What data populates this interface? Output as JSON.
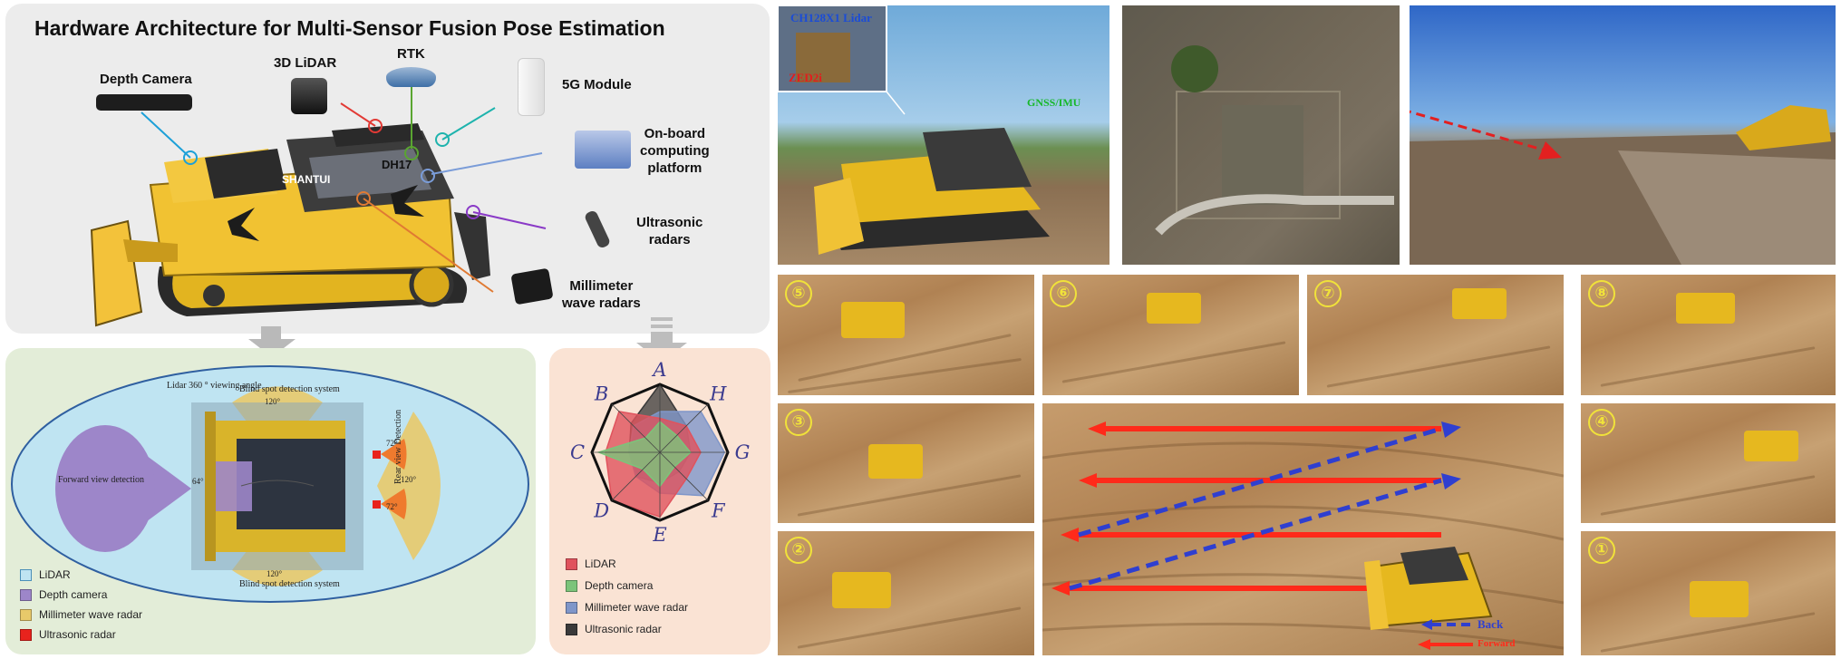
{
  "top": {
    "title": "Hardware Architecture for Multi-Sensor Fusion Pose Estimation",
    "sensors": {
      "depth_camera": "Depth Camera",
      "lidar": "3D LiDAR",
      "rtk": "RTK",
      "module_5g": "5G Module",
      "computing_1": "On-board",
      "computing_2": "computing",
      "computing_3": "platform",
      "ultrasonic_1": "Ultrasonic",
      "ultrasonic_2": "radars",
      "mmwave_1": "Millimeter",
      "mmwave_2": "wave radars"
    },
    "machine": {
      "brand": "SHANTUI",
      "model": "DH17"
    }
  },
  "coverage": {
    "lidar_view": "Lidar 360 ° viewing angle",
    "blind_top": "Blind spot detection system",
    "blind_bottom": "Blind spot detection system",
    "forward": "Forward view detection",
    "rear": "Rear view Detection",
    "angle_64": "64°",
    "angle_120_top": "120°",
    "angle_120_bottom": "120°",
    "angle_120_rear": "120°",
    "angle_72_top": "72°",
    "angle_72_bottom": "72°",
    "legend": [
      "LiDAR",
      "Depth camera",
      "Millimeter wave radar",
      "Ultrasonic radar"
    ],
    "colors": {
      "lidar": "#bfe4f2",
      "depth": "#9d86c9",
      "mmwave": "#e8c96a",
      "ultrasonic": "#e8231d"
    }
  },
  "radar": {
    "axes": [
      "A",
      "H",
      "G",
      "F",
      "E",
      "D",
      "C",
      "B"
    ],
    "legend": [
      "LiDAR",
      "Depth camera",
      "Millimeter wave radar",
      "Ultrasonic radar"
    ],
    "colors": {
      "lidar": "#e0535d",
      "depth": "#7cc47a",
      "mmwave": "#7f96c9",
      "ultrasonic": "#3a3a3a"
    }
  },
  "photos": {
    "lidar_label": "CH128X1 Lidar",
    "zed_label": "ZED2i",
    "gnss_label": "GNSS/IMU",
    "back_label": "Back",
    "forward_label": "Forward"
  },
  "sequence": [
    "⑤",
    "⑥",
    "⑦",
    "⑧",
    "③",
    "④",
    "②",
    "①"
  ]
}
